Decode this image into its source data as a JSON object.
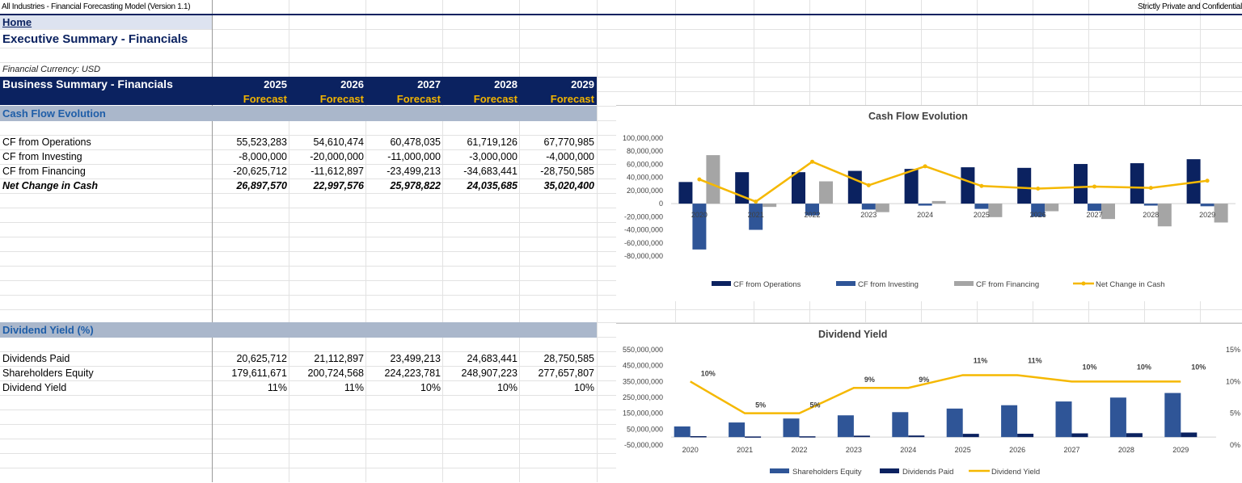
{
  "topbar": {
    "model_title": "All Industries - Financial Forecasting Model (Version 1.1)",
    "confidential": "Strictly Private and Confidential"
  },
  "nav": {
    "home_label": "Home"
  },
  "page": {
    "title": "Executive Summary - Financials",
    "currency_note": "Financial Currency: USD"
  },
  "summary_header": {
    "title": "Business Summary - Financials",
    "years": [
      "2025",
      "2026",
      "2027",
      "2028",
      "2029"
    ],
    "period_labels": [
      "Forecast",
      "Forecast",
      "Forecast",
      "Forecast",
      "Forecast"
    ]
  },
  "cash_flow_section": {
    "title": "Cash Flow Evolution",
    "rows": [
      {
        "label": "CF from Operations",
        "values": [
          "55,523,283",
          "54,610,474",
          "60,478,035",
          "61,719,126",
          "67,770,985"
        ]
      },
      {
        "label": "CF from Investing",
        "values": [
          "-8,000,000",
          "-20,000,000",
          "-11,000,000",
          "-3,000,000",
          "-4,000,000"
        ]
      },
      {
        "label": "CF from Financing",
        "values": [
          "-20,625,712",
          "-11,612,897",
          "-23,499,213",
          "-34,683,441",
          "-28,750,585"
        ]
      },
      {
        "label": "Net Change in Cash",
        "values": [
          "26,897,570",
          "22,997,576",
          "25,978,822",
          "24,035,685",
          "35,020,400"
        ]
      }
    ]
  },
  "dividend_section": {
    "title": "Dividend Yield (%)",
    "rows": [
      {
        "label": "Dividends Paid",
        "values": [
          "20,625,712",
          "21,112,897",
          "23,499,213",
          "24,683,441",
          "28,750,585"
        ]
      },
      {
        "label": "Shareholders Equity",
        "values": [
          "179,611,671",
          "200,724,568",
          "224,223,781",
          "248,907,223",
          "277,657,807"
        ]
      },
      {
        "label": "Dividend Yield",
        "values": [
          "11%",
          "11%",
          "10%",
          "10%",
          "10%"
        ]
      }
    ]
  },
  "colors": {
    "navy": "#0b2260",
    "blue": "#2f5597",
    "gray": "#a5a5a5",
    "gold": "#f5b800"
  },
  "chart_data": [
    {
      "type": "bar",
      "title": "Cash Flow Evolution",
      "categories": [
        "2020",
        "2021",
        "2022",
        "2023",
        "2024",
        "2025",
        "2026",
        "2027",
        "2028",
        "2029"
      ],
      "ylim": [
        -80000000,
        100000000
      ],
      "ytick_labels": [
        "100,000,000",
        "80,000,000",
        "60,000,000",
        "40,000,000",
        "20,000,000",
        "0",
        "-20,000,000",
        "-40,000,000",
        "-60,000,000",
        "-80,000,000"
      ],
      "legend": "bottom",
      "series": [
        {
          "name": "CF from Operations",
          "type": "bar",
          "color": "#0b2260",
          "values": [
            33000000,
            48000000,
            48000000,
            50000000,
            53000000,
            55500000,
            54600000,
            60500000,
            61700000,
            67800000
          ]
        },
        {
          "name": "CF from Investing",
          "type": "bar",
          "color": "#2f5597",
          "values": [
            -70000000,
            -40000000,
            -18000000,
            -9000000,
            -3000000,
            -8000000,
            -20000000,
            -11000000,
            -3000000,
            -4000000
          ]
        },
        {
          "name": "CF from Financing",
          "type": "bar",
          "color": "#a5a5a5",
          "values": [
            74000000,
            -5000000,
            34000000,
            -13000000,
            4000000,
            -20600000,
            -11600000,
            -23500000,
            -34700000,
            -28800000
          ]
        },
        {
          "name": "Net Change in Cash",
          "type": "line",
          "color": "#f5b800",
          "values": [
            37000000,
            3000000,
            64000000,
            28000000,
            57000000,
            26900000,
            23000000,
            26000000,
            24000000,
            35000000
          ]
        }
      ]
    },
    {
      "type": "bar",
      "title": "Dividend Yield",
      "categories": [
        "2020",
        "2021",
        "2022",
        "2023",
        "2024",
        "2025",
        "2026",
        "2027",
        "2028",
        "2029"
      ],
      "ylim": [
        -50000000,
        550000000
      ],
      "ytick_labels": [
        "550,000,000",
        "450,000,000",
        "350,000,000",
        "250,000,000",
        "150,000,000",
        "50,000,000",
        "-50,000,000"
      ],
      "y2lim": [
        0,
        15
      ],
      "y2tick_labels": [
        "15%",
        "10%",
        "5%",
        "0%"
      ],
      "legend": "bottom",
      "series": [
        {
          "name": "Shareholders Equity",
          "type": "bar",
          "color": "#2f5597",
          "values": [
            67000000,
            92000000,
            117000000,
            137000000,
            157000000,
            179600000,
            200700000,
            224200000,
            248900000,
            277700000
          ]
        },
        {
          "name": "Dividends Paid",
          "type": "bar",
          "color": "#0b2260",
          "values": [
            6000000,
            4000000,
            5000000,
            9000000,
            10000000,
            20600000,
            21100000,
            23500000,
            24700000,
            28800000
          ]
        },
        {
          "name": "Dividend Yield",
          "type": "line",
          "axis": "secondary",
          "color": "#f5b800",
          "values": [
            10,
            5,
            5,
            9,
            9,
            11,
            11,
            10,
            10,
            10
          ],
          "labels": [
            "10%",
            "5%",
            "5%",
            "9%",
            "9%",
            "11%",
            "11%",
            "10%",
            "10%",
            "10%"
          ]
        }
      ]
    }
  ]
}
